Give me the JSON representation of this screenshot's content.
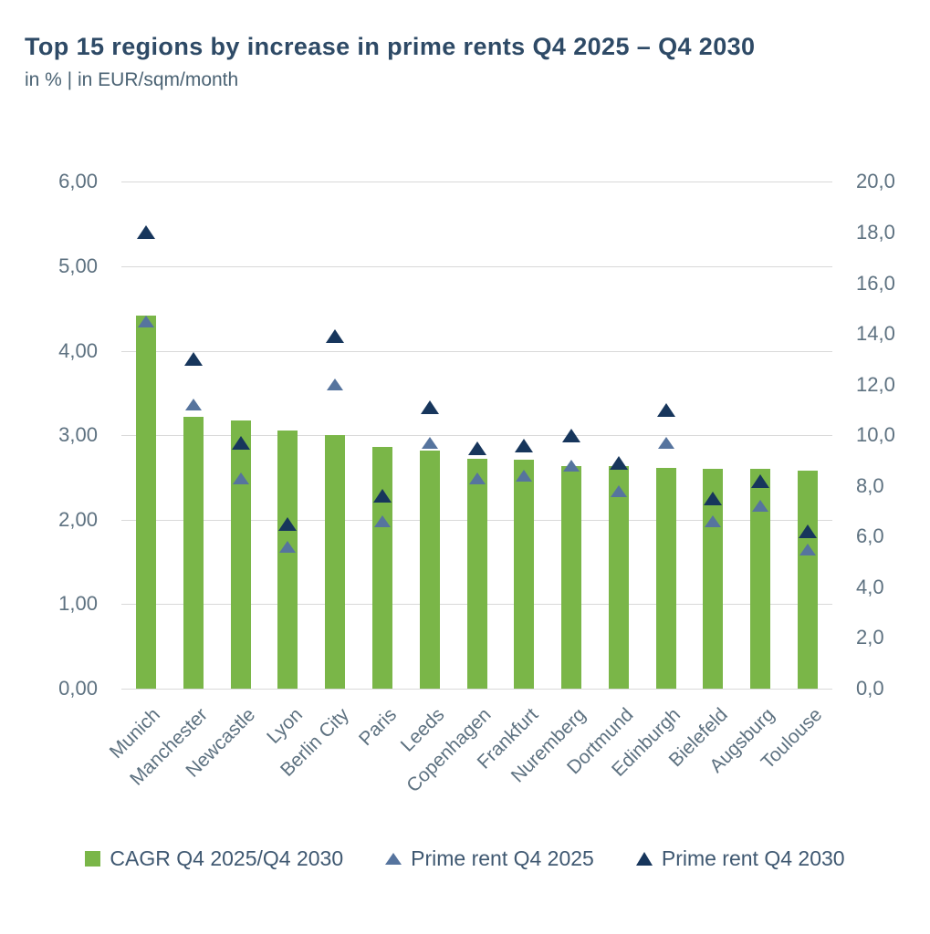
{
  "title": "Top 15 regions by increase in prime rents Q4 2025 – Q4 2030",
  "subtitle": "in % | in EUR/sqm/month",
  "colors": {
    "bar_green": "#7ab648",
    "prime_2025": "#56749e",
    "prime_2030": "#17365c",
    "grid": "#d9d9d9",
    "title_text": "#2e4a66",
    "subtitle_text": "#4b6374",
    "axis_text": "#5d7180",
    "legend_text": "#3f5871"
  },
  "left_axis": {
    "ticks": [
      "0,00",
      "1,00",
      "2,00",
      "3,00",
      "4,00",
      "5,00",
      "6,00"
    ],
    "min": 0,
    "max": 6
  },
  "right_axis": {
    "ticks": [
      "0,0",
      "2,0",
      "4,0",
      "6,0",
      "8,0",
      "10,0",
      "12,0",
      "14,0",
      "16,0",
      "18,0",
      "20,0"
    ],
    "min": 0,
    "max": 20
  },
  "legend": [
    {
      "label": "CAGR Q4 2025/Q4 2030",
      "marker": "square"
    },
    {
      "label": "Prime rent Q4 2025",
      "marker": "triangle-grey"
    },
    {
      "label": "Prime rent Q4 2030",
      "marker": "triangle-navy"
    }
  ],
  "chart_data": {
    "type": "bar",
    "title": "Top 15 regions by increase in prime rents Q4 2025 – Q4 2030",
    "subtitle_units": "in % | in EUR/sqm/month",
    "categories": [
      "Munich",
      "Manchester",
      "Newcastle",
      "Lyon",
      "Berlin City",
      "Paris",
      "Leeds",
      "Copenhagen",
      "Frankfurt",
      "Nuremberg",
      "Dortmund",
      "Edinburgh",
      "Bielefeld",
      "Augsburg",
      "Toulouse"
    ],
    "series": [
      {
        "name": "CAGR Q4 2025/Q4 2030",
        "type": "bar",
        "axis": "left",
        "values": [
          4.42,
          3.22,
          3.17,
          3.06,
          3.0,
          2.86,
          2.82,
          2.72,
          2.71,
          2.64,
          2.63,
          2.61,
          2.6,
          2.6,
          2.58
        ]
      },
      {
        "name": "Prime rent Q4 2025",
        "type": "scatter",
        "marker": "triangle",
        "axis": "right",
        "values": [
          14.5,
          11.2,
          8.3,
          5.6,
          12.0,
          6.6,
          9.7,
          8.3,
          8.4,
          8.8,
          7.8,
          9.7,
          6.6,
          7.2,
          5.5
        ]
      },
      {
        "name": "Prime rent Q4 2030",
        "type": "scatter",
        "marker": "triangle",
        "axis": "right",
        "values": [
          18.0,
          13.0,
          9.7,
          6.5,
          13.9,
          7.6,
          11.1,
          9.5,
          9.6,
          10.0,
          8.9,
          11.0,
          7.5,
          8.2,
          6.2
        ]
      }
    ],
    "left_ylim": [
      0,
      6
    ],
    "right_ylim": [
      0,
      20
    ],
    "grid": true,
    "legend_position": "bottom"
  }
}
